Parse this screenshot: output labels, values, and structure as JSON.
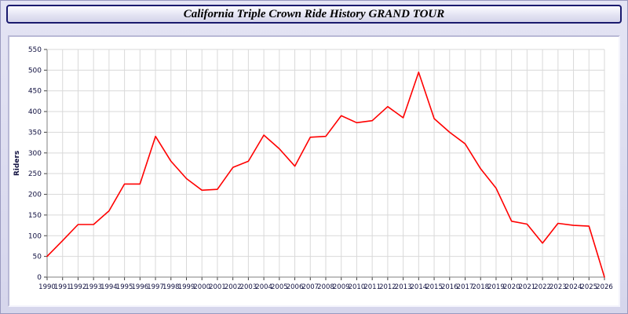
{
  "title": "California Triple Crown Ride History GRAND TOUR",
  "chart_data": {
    "type": "line",
    "title": "California Triple Crown Ride History GRAND TOUR",
    "xlabel": "",
    "ylabel": "Riders",
    "ylim": [
      0,
      550
    ],
    "ytick_step": 50,
    "grid": true,
    "legend_position": "none",
    "line_color": "#ff0000",
    "x": [
      1990,
      1991,
      1992,
      1993,
      1994,
      1995,
      1996,
      1997,
      1998,
      1999,
      2000,
      2001,
      2002,
      2003,
      2004,
      2005,
      2006,
      2007,
      2008,
      2009,
      2010,
      2011,
      2012,
      2013,
      2014,
      2015,
      2016,
      2017,
      2018,
      2019,
      2020,
      2021,
      2022,
      2023,
      2024,
      2025,
      2026
    ],
    "series": [
      {
        "name": "Riders",
        "values": [
          50,
          88,
          127,
          127,
          160,
          225,
          225,
          340,
          280,
          238,
          210,
          212,
          265,
          280,
          343,
          310,
          268,
          338,
          340,
          390,
          373,
          378,
          412,
          385,
          495,
          383,
          350,
          322,
          262,
          215,
          135,
          128,
          82,
          130,
          125,
          123,
          0
        ]
      }
    ]
  }
}
